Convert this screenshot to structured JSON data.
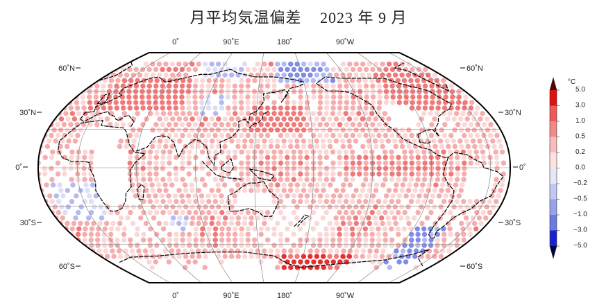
{
  "title": {
    "main": "月平均気温偏差",
    "date": "2023 年 9 月"
  },
  "map": {
    "projection": "robinson-like",
    "center_longitude": "150E",
    "top_lon_labels": [
      "0˚",
      "90˚E",
      "180˚",
      "90˚W"
    ],
    "bottom_lon_labels": [
      "0˚",
      "90˚E",
      "180˚",
      "90˚W"
    ],
    "left_lat_labels": [
      "60˚N",
      "30˚N",
      "0˚",
      "30˚S",
      "60˚S"
    ],
    "right_lat_labels": [
      "60˚N",
      "30˚N",
      "0˚",
      "30˚S",
      "60˚S"
    ]
  },
  "colorbar": {
    "unit": "°C",
    "labels": [
      "5.0",
      "3.0",
      "1.0",
      "0.5",
      "0.2",
      "0.0",
      "−0.2",
      "−0.5",
      "−1.0",
      "−3.0",
      "−5.0"
    ],
    "colors": [
      "#a00000",
      "#e01a1a",
      "#ee6b6b",
      "#f4a4a4",
      "#fad4d4",
      "#ffffff",
      "#d8dcf6",
      "#aab3ee",
      "#7480e4",
      "#3a48d6",
      "#0010c8"
    ]
  },
  "chart_data": {
    "type": "heatmap",
    "title": "月平均気温偏差 2023 年 9 月",
    "legend_title": "°C",
    "legend_levels": [
      -5.0,
      -3.0,
      -1.0,
      -0.5,
      -0.2,
      0.0,
      0.2,
      0.5,
      1.0,
      3.0,
      5.0
    ],
    "summary": "Global monthly surface temperature anomaly, September 2023; predominantly positive (red) anomalies worldwide, strongest warmth over Europe, northern Eurasia, northern North America, and Antarctic coast near 180˚; negative (blue) anomalies over Southern Ocean patches, Arctic Ocean near 180˚, western Africa south Atlantic and southern South America.",
    "regions": [
      {
        "region": "Europe / W. Russia",
        "anomaly": "1.0 to 3.0"
      },
      {
        "region": "Northern Canada / Greenland",
        "anomaly": "1.0 to 3.0"
      },
      {
        "region": "East Asia / Japan",
        "anomaly": "1.0 to 3.0"
      },
      {
        "region": "Tropical oceans",
        "anomaly": "0.2 to 1.0"
      },
      {
        "region": "Arctic near 180˚",
        "anomaly": "-0.5 to -1.0"
      },
      {
        "region": "South Atlantic off Africa",
        "anomaly": "-0.2 to -1.0"
      },
      {
        "region": "Southern South America / Drake",
        "anomaly": "-0.5 to -3.0"
      },
      {
        "region": "Antarctic coast near 180˚",
        "anomaly": "1.0 to 5.0"
      }
    ]
  }
}
